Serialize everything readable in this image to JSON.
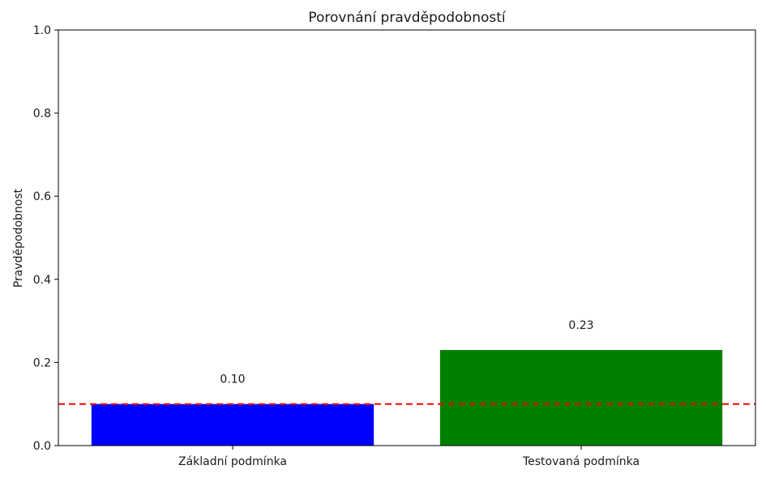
{
  "chart_data": {
    "type": "bar",
    "title": "Porovnání pravděpodobností",
    "xlabel": "",
    "ylabel": "Pravděpodobnost",
    "categories": [
      "Základní podmínka",
      "Testovaná podmínka"
    ],
    "values": [
      0.1,
      0.23
    ],
    "data_labels": [
      "0.10",
      "0.23"
    ],
    "bar_colors": [
      "#0000ff",
      "#008000"
    ],
    "ylim": [
      0,
      1.0
    ],
    "yticks": [
      0.0,
      0.2,
      0.4,
      0.6,
      0.8,
      1.0
    ],
    "ytick_labels": [
      "0.0",
      "0.2",
      "0.4",
      "0.6",
      "0.8",
      "1.0"
    ],
    "reference_line": {
      "value": 0.1,
      "color": "#ff0000",
      "style": "dashed"
    },
    "grid": false,
    "legend": false
  }
}
